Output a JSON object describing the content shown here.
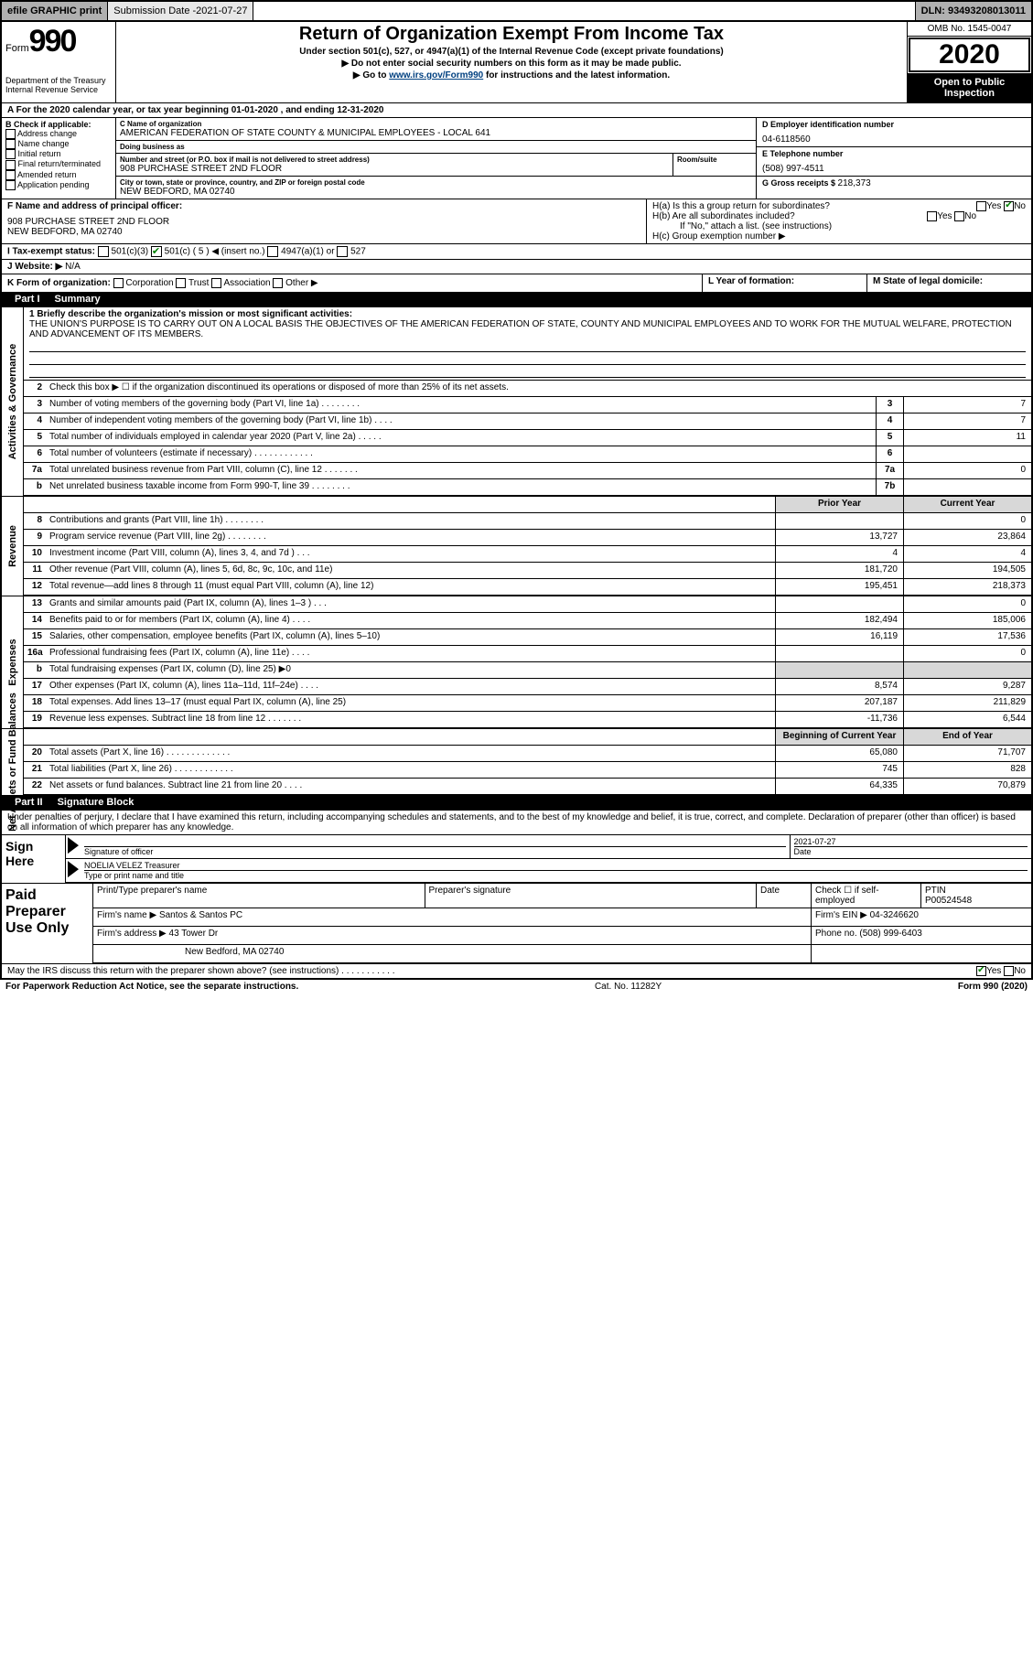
{
  "topbar": {
    "efile": "efile GRAPHIC print",
    "subdate_label": "Submission Date - ",
    "subdate": "2021-07-27",
    "dln": "DLN: 93493208013011"
  },
  "header": {
    "form_label": "Form",
    "form_number": "990",
    "dept": "Department of the Treasury\nInternal Revenue Service",
    "title": "Return of Organization Exempt From Income Tax",
    "subtitle1": "Under section 501(c), 527, or 4947(a)(1) of the Internal Revenue Code (except private foundations)",
    "subtitle2": "▶ Do not enter social security numbers on this form as it may be made public.",
    "subtitle3_pre": "▶ Go to ",
    "subtitle3_link": "www.irs.gov/Form990",
    "subtitle3_post": " for instructions and the latest information.",
    "omb": "OMB No. 1545-0047",
    "year": "2020",
    "open": "Open to Public Inspection"
  },
  "period": {
    "text": "For the 2020 calendar year, or tax year beginning 01-01-2020   , and ending 12-31-2020"
  },
  "checkB": {
    "label": "B Check if applicable:",
    "items": [
      "Address change",
      "Name change",
      "Initial return",
      "Final return/terminated",
      "Amended return",
      "Application pending"
    ]
  },
  "orgC": {
    "name_lbl": "C Name of organization",
    "name": "AMERICAN FEDERATION OF STATE COUNTY & MUNICIPAL EMPLOYEES - LOCAL 641",
    "dba_lbl": "Doing business as",
    "dba": "",
    "street_lbl": "Number and street (or P.O. box if mail is not delivered to street address)",
    "street": "908 PURCHASE STREET 2ND FLOOR",
    "room_lbl": "Room/suite",
    "city_lbl": "City or town, state or province, country, and ZIP or foreign postal code",
    "city": "NEW BEDFORD, MA  02740"
  },
  "colD": {
    "ein_lbl": "D Employer identification number",
    "ein": "04-6118560",
    "tel_lbl": "E Telephone number",
    "tel": "(508) 997-4511",
    "gross_lbl": "G Gross receipts $ ",
    "gross": "218,373"
  },
  "rowF": {
    "lbl": "F Name and address of principal officer:",
    "val": "908 PURCHASE STREET 2ND FLOOR\nNEW BEDFORD, MA  02740"
  },
  "rowH": {
    "ha": "H(a)  Is this a group return for subordinates?",
    "hb": "H(b)  Are all subordinates included?",
    "hb_note": "If \"No,\" attach a list. (see instructions)",
    "hc": "H(c)  Group exemption number ▶",
    "yes": "Yes",
    "no": "No"
  },
  "rowI": {
    "lbl": "I  Tax-exempt status:",
    "opts": [
      "501(c)(3)",
      "501(c) ( 5 ) ◀ (insert no.)",
      "4947(a)(1) or",
      "527"
    ]
  },
  "rowJ": {
    "lbl": "J  Website: ▶",
    "val": "N/A"
  },
  "rowK": {
    "lbl": "K Form of organization:",
    "opts": [
      "Corporation",
      "Trust",
      "Association",
      "Other ▶"
    ]
  },
  "rowL": {
    "lbl": "L Year of formation:",
    "val": ""
  },
  "rowM": {
    "lbl": "M State of legal domicile:",
    "val": ""
  },
  "part1": {
    "hdr_num": "Part I",
    "hdr_title": "Summary",
    "mission_lbl": "1  Briefly describe the organization's mission or most significant activities:",
    "mission": "THE UNION'S PURPOSE IS TO CARRY OUT ON A LOCAL BASIS THE OBJECTIVES OF THE AMERICAN FEDERATION OF STATE, COUNTY AND MUNICIPAL EMPLOYEES AND TO WORK FOR THE MUTUAL WELFARE, PROTECTION AND ADVANCEMENT OF ITS MEMBERS.",
    "line2": "Check this box ▶ ☐ if the organization discontinued its operations or disposed of more than 25% of its net assets.",
    "vert_labels": {
      "gov": "Activities & Governance",
      "rev": "Revenue",
      "exp": "Expenses",
      "net": "Net Assets or Fund Balances"
    },
    "gov_rows": [
      {
        "n": "3",
        "d": "Number of voting members of the governing body (Part VI, line 1a)  .  .  .  .  .  .  .  .",
        "b": "3",
        "v": "7"
      },
      {
        "n": "4",
        "d": "Number of independent voting members of the governing body (Part VI, line 1b)  .  .  .  .",
        "b": "4",
        "v": "7"
      },
      {
        "n": "5",
        "d": "Total number of individuals employed in calendar year 2020 (Part V, line 2a)  .  .  .  .  .",
        "b": "5",
        "v": "11"
      },
      {
        "n": "6",
        "d": "Total number of volunteers (estimate if necessary)  .  .  .  .  .  .  .  .  .  .  .  .",
        "b": "6",
        "v": ""
      },
      {
        "n": "7a",
        "d": "Total unrelated business revenue from Part VIII, column (C), line 12  .  .  .  .  .  .  .",
        "b": "7a",
        "v": "0"
      },
      {
        "n": "b",
        "d": "Net unrelated business taxable income from Form 990-T, line 39  .  .  .  .  .  .  .  .",
        "b": "7b",
        "v": ""
      }
    ],
    "head_prior": "Prior Year",
    "head_current": "Current Year",
    "rev_rows": [
      {
        "n": "8",
        "d": "Contributions and grants (Part VIII, line 1h)  .  .  .  .  .  .  .  .",
        "p": "",
        "c": "0"
      },
      {
        "n": "9",
        "d": "Program service revenue (Part VIII, line 2g)  .  .  .  .  .  .  .  .",
        "p": "13,727",
        "c": "23,864"
      },
      {
        "n": "10",
        "d": "Investment income (Part VIII, column (A), lines 3, 4, and 7d )  .  .  .",
        "p": "4",
        "c": "4"
      },
      {
        "n": "11",
        "d": "Other revenue (Part VIII, column (A), lines 5, 6d, 8c, 9c, 10c, and 11e)",
        "p": "181,720",
        "c": "194,505"
      },
      {
        "n": "12",
        "d": "Total revenue—add lines 8 through 11 (must equal Part VIII, column (A), line 12)",
        "p": "195,451",
        "c": "218,373"
      }
    ],
    "exp_rows": [
      {
        "n": "13",
        "d": "Grants and similar amounts paid (Part IX, column (A), lines 1–3 )  .  .  .",
        "p": "",
        "c": "0"
      },
      {
        "n": "14",
        "d": "Benefits paid to or for members (Part IX, column (A), line 4)  .  .  .  .",
        "p": "182,494",
        "c": "185,006"
      },
      {
        "n": "15",
        "d": "Salaries, other compensation, employee benefits (Part IX, column (A), lines 5–10)",
        "p": "16,119",
        "c": "17,536"
      },
      {
        "n": "16a",
        "d": "Professional fundraising fees (Part IX, column (A), line 11e)  .  .  .  .",
        "p": "",
        "c": "0"
      },
      {
        "n": "b",
        "d": "Total fundraising expenses (Part IX, column (D), line 25) ▶0",
        "p": "shade",
        "c": "shade"
      },
      {
        "n": "17",
        "d": "Other expenses (Part IX, column (A), lines 11a–11d, 11f–24e)  .  .  .  .",
        "p": "8,574",
        "c": "9,287"
      },
      {
        "n": "18",
        "d": "Total expenses. Add lines 13–17 (must equal Part IX, column (A), line 25)",
        "p": "207,187",
        "c": "211,829"
      },
      {
        "n": "19",
        "d": "Revenue less expenses. Subtract line 18 from line 12  .  .  .  .  .  .  .",
        "p": "-11,736",
        "c": "6,544"
      }
    ],
    "net_head_p": "Beginning of Current Year",
    "net_head_c": "End of Year",
    "net_rows": [
      {
        "n": "20",
        "d": "Total assets (Part X, line 16)  .  .  .  .  .  .  .  .  .  .  .  .  .",
        "p": "65,080",
        "c": "71,707"
      },
      {
        "n": "21",
        "d": "Total liabilities (Part X, line 26)  .  .  .  .  .  .  .  .  .  .  .  .",
        "p": "745",
        "c": "828"
      },
      {
        "n": "22",
        "d": "Net assets or fund balances. Subtract line 21 from line 20  .  .  .  .",
        "p": "64,335",
        "c": "70,879"
      }
    ]
  },
  "part2": {
    "hdr_num": "Part II",
    "hdr_title": "Signature Block",
    "decl": "Under penalties of perjury, I declare that I have examined this return, including accompanying schedules and statements, and to the best of my knowledge and belief, it is true, correct, and complete. Declaration of preparer (other than officer) is based on all information of which preparer has any knowledge."
  },
  "sign": {
    "lbl": "Sign Here",
    "sig_lbl": "Signature of officer",
    "date_lbl": "Date",
    "date": "2021-07-27",
    "name": "NOELIA VELEZ  Treasurer",
    "name_lbl": "Type or print name and title"
  },
  "prep": {
    "lbl": "Paid Preparer Use Only",
    "r1": {
      "c1": "Print/Type preparer's name",
      "c2": "Preparer's signature",
      "c3": "Date",
      "c4": "Check ☐ if self-employed",
      "c5": "PTIN",
      "c5v": "P00524548"
    },
    "r2": {
      "c1": "Firm's name   ▶",
      "c1v": "Santos & Santos PC",
      "c2": "Firm's EIN ▶",
      "c2v": "04-3246620"
    },
    "r3": {
      "c1": "Firm's address ▶",
      "c1v": "43 Tower Dr",
      "c2": "Phone no.",
      "c2v": "(508) 999-6403"
    },
    "r3b": {
      "c1v": "New Bedford, MA  02740"
    }
  },
  "footer": {
    "discuss": "May the IRS discuss this return with the preparer shown above? (see instructions)  .  .  .  .  .  .  .  .  .  .  .",
    "yes": "Yes",
    "no": "No",
    "pra": "For Paperwork Reduction Act Notice, see the separate instructions.",
    "cat": "Cat. No. 11282Y",
    "form": "Form 990 (2020)"
  }
}
